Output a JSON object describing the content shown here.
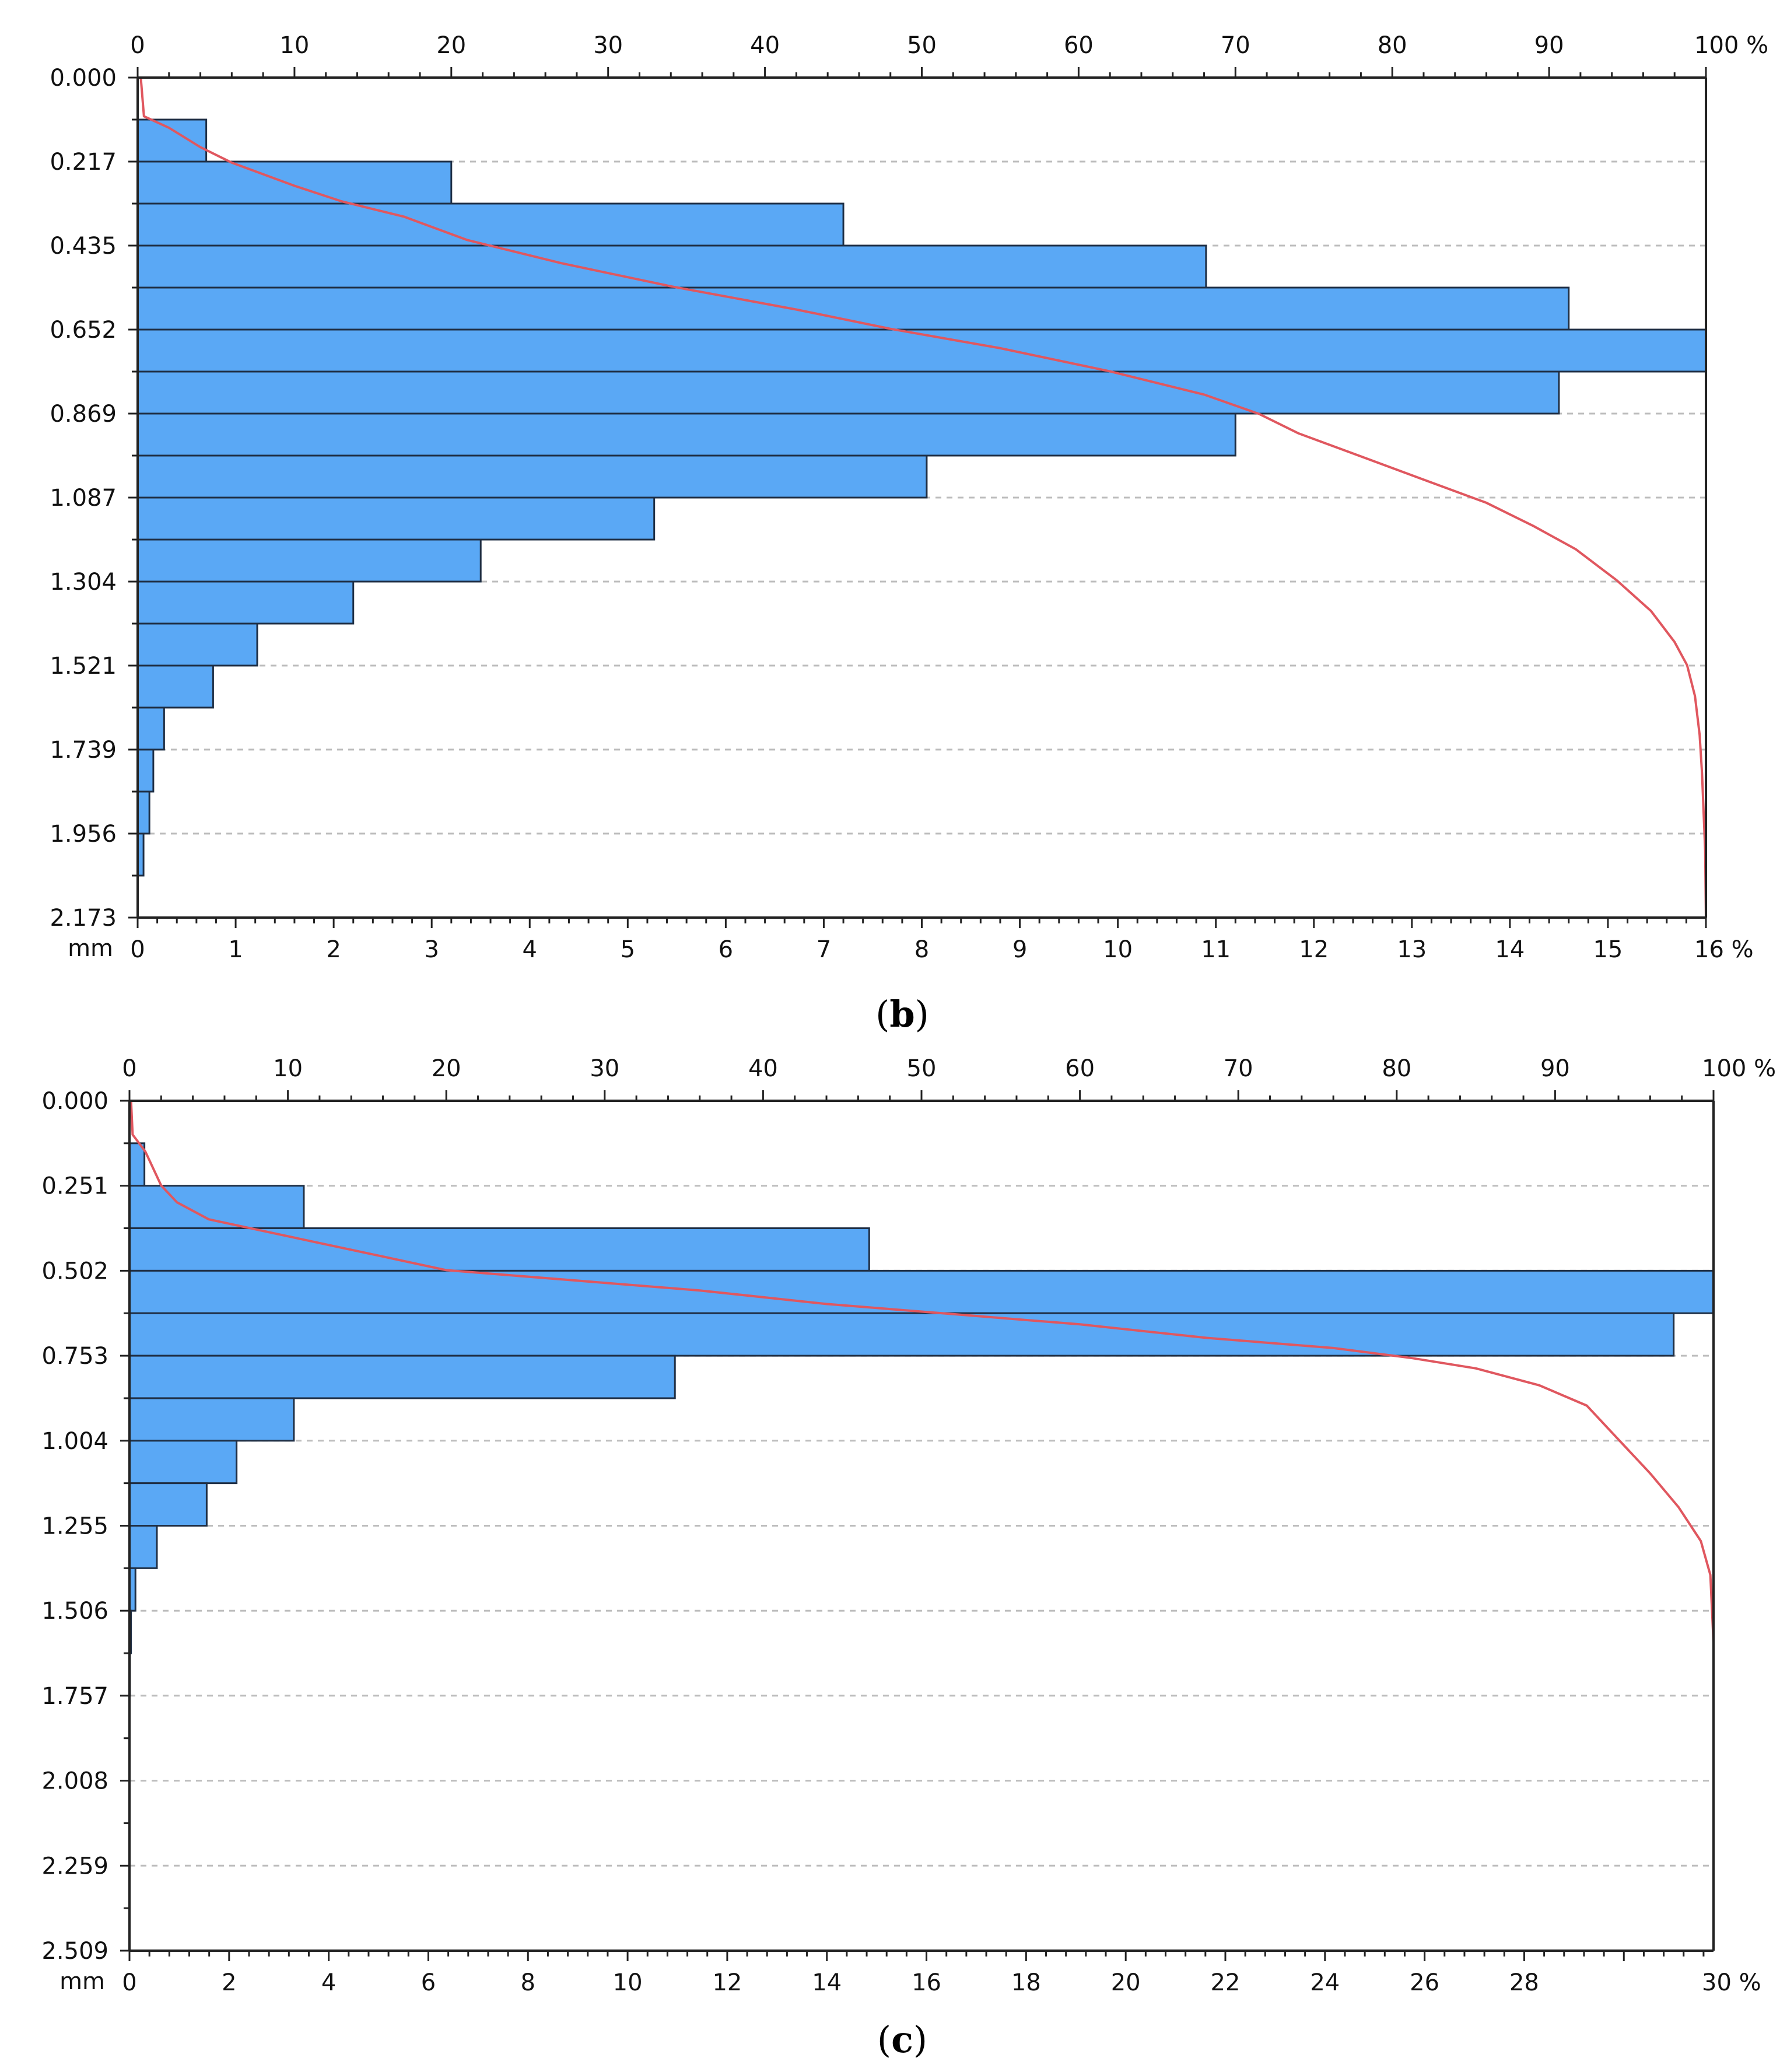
{
  "chart_data": [
    {
      "type": "bar",
      "orientation": "horizontal",
      "caption_label": "b",
      "ylabel": "mm",
      "y_ticks": [
        "0.000",
        "0.217",
        "0.435",
        "0.652",
        "0.869",
        "1.087",
        "1.304",
        "1.521",
        "1.739",
        "1.956",
        "2.173"
      ],
      "y_range": [
        0,
        2.173
      ],
      "bin_width": 0.1087,
      "bottom_axis": {
        "ticks": [
          "0",
          "1",
          "2",
          "3",
          "4",
          "5",
          "6",
          "7",
          "8",
          "9",
          "10",
          "11",
          "12",
          "13",
          "14",
          "15"
        ],
        "end_label": "16 %",
        "max": 16
      },
      "top_axis": {
        "ticks": [
          "0",
          "10",
          "20",
          "30",
          "40",
          "50",
          "60",
          "70",
          "80",
          "90"
        ],
        "end_label": "100 %",
        "max": 100
      },
      "values": [
        0,
        0.7,
        3.2,
        7.2,
        10.9,
        14.6,
        16.0,
        14.5,
        11.2,
        8.05,
        5.27,
        3.5,
        2.2,
        1.22,
        0.77,
        0.27,
        0.16,
        0.12,
        0.06,
        0.0
      ],
      "cumulative": [
        [
          0.0,
          0.2
        ],
        [
          0.1,
          0.4
        ],
        [
          0.13,
          2
        ],
        [
          0.18,
          4
        ],
        [
          0.22,
          6
        ],
        [
          0.28,
          10
        ],
        [
          0.32,
          13
        ],
        [
          0.36,
          17
        ],
        [
          0.42,
          21
        ],
        [
          0.48,
          27
        ],
        [
          0.54,
          34
        ],
        [
          0.6,
          42
        ],
        [
          0.65,
          48
        ],
        [
          0.7,
          55
        ],
        [
          0.76,
          62
        ],
        [
          0.82,
          68
        ],
        [
          0.87,
          71.5
        ],
        [
          0.92,
          74
        ],
        [
          0.98,
          78
        ],
        [
          1.04,
          82
        ],
        [
          1.1,
          86
        ],
        [
          1.16,
          89
        ],
        [
          1.22,
          91.7
        ],
        [
          1.3,
          94.3
        ],
        [
          1.38,
          96.5
        ],
        [
          1.46,
          98
        ],
        [
          1.52,
          98.8
        ],
        [
          1.6,
          99.3
        ],
        [
          1.7,
          99.6
        ],
        [
          1.8,
          99.75
        ],
        [
          1.9,
          99.85
        ],
        [
          2.0,
          99.95
        ],
        [
          2.173,
          100
        ]
      ],
      "colors": {
        "bar": "#5aa8f5",
        "bar_edge": "#1f2f45",
        "curve": "#e0575f",
        "grid": "#bdbdbd"
      }
    },
    {
      "type": "bar",
      "orientation": "horizontal",
      "caption_label": "c",
      "ylabel": "mm",
      "y_ticks": [
        "0.000",
        "0.251",
        "0.502",
        "0.753",
        "1.004",
        "1.255",
        "1.506",
        "1.757",
        "2.008",
        "2.259",
        "2.509"
      ],
      "y_range": [
        0,
        2.509
      ],
      "bin_width": 0.1255,
      "bottom_axis": {
        "ticks": [
          "0",
          "2",
          "4",
          "6",
          "8",
          "10",
          "12",
          "14",
          "16",
          "18",
          "20",
          "22",
          "24",
          "26",
          "28"
        ],
        "end_label": "30 %",
        "max": 31.8
      },
      "top_axis": {
        "ticks": [
          "0",
          "10",
          "20",
          "30",
          "40",
          "50",
          "60",
          "70",
          "80",
          "90"
        ],
        "end_label": "100 %",
        "max": 100
      },
      "values": [
        0,
        0.3,
        3.5,
        14.85,
        31.8,
        31.0,
        10.95,
        3.3,
        2.15,
        1.55,
        0.55,
        0.12,
        0.03,
        0.01,
        0.0,
        0.0,
        0.0,
        0.0,
        0.0,
        0.0
      ],
      "cumulative": [
        [
          0.0,
          0.1
        ],
        [
          0.1,
          0.2
        ],
        [
          0.15,
          1
        ],
        [
          0.25,
          2
        ],
        [
          0.3,
          3
        ],
        [
          0.35,
          5
        ],
        [
          0.38,
          8
        ],
        [
          0.42,
          12
        ],
        [
          0.46,
          16
        ],
        [
          0.5,
          20
        ],
        [
          0.53,
          28
        ],
        [
          0.56,
          36
        ],
        [
          0.6,
          44
        ],
        [
          0.63,
          52
        ],
        [
          0.66,
          60
        ],
        [
          0.7,
          68
        ],
        [
          0.73,
          76
        ],
        [
          0.76,
          81
        ],
        [
          0.79,
          85
        ],
        [
          0.84,
          89
        ],
        [
          0.9,
          92
        ],
        [
          1.0,
          94
        ],
        [
          1.1,
          96
        ],
        [
          1.2,
          97.8
        ],
        [
          1.3,
          99.2
        ],
        [
          1.4,
          99.8
        ],
        [
          1.6,
          100
        ],
        [
          2.509,
          100
        ]
      ],
      "colors": {
        "bar": "#5aa8f5",
        "bar_edge": "#1f2f45",
        "curve": "#e0575f",
        "grid": "#bdbdbd"
      }
    }
  ]
}
